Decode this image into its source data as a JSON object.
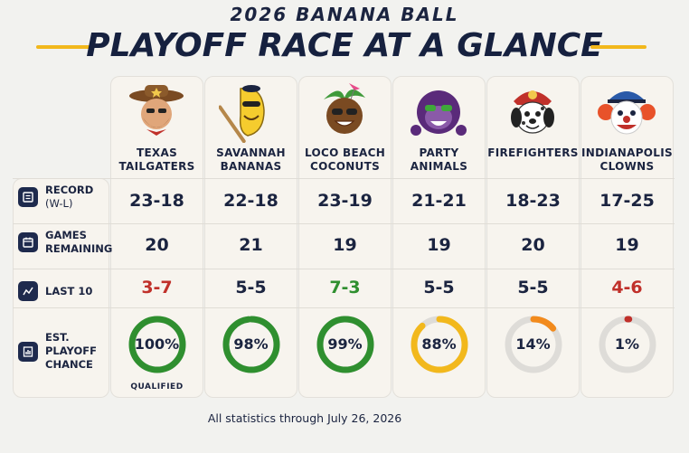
{
  "header": {
    "eyebrow": "2026 BANANA BALL",
    "title": "PLAYOFF RACE AT A GLANCE"
  },
  "row_labels": {
    "record": "RECORD",
    "record_sub": "(W-L)",
    "games": "GAMES",
    "games_sub": "REMAINING",
    "last10": "LAST 10",
    "chance": "EST. PLAYOFF",
    "chance_sub": "CHANCE"
  },
  "teams": [
    {
      "line1": "TEXAS",
      "line2": "TAILGATERS",
      "record": "23-18",
      "games_remaining": "20",
      "last10": "3-7",
      "last10_color": "#c0302a",
      "chance_label": "100%",
      "chance": 100,
      "ring_color": "#2f8f2f",
      "note": "QUALIFIED",
      "logo_icon": "cowboy-mascot-icon"
    },
    {
      "line1": "SAVANNAH",
      "line2": "BANANAS",
      "record": "22-18",
      "games_remaining": "21",
      "last10": "5-5",
      "last10_color": "#1b2440",
      "chance_label": "98%",
      "chance": 98,
      "ring_color": "#2f8f2f",
      "note": "",
      "logo_icon": "banana-mascot-icon"
    },
    {
      "line1": "LOCO BEACH",
      "line2": "COCONUTS",
      "record": "23-19",
      "games_remaining": "19",
      "last10": "7-3",
      "last10_color": "#2f8f2f",
      "chance_label": "99%",
      "chance": 99,
      "ring_color": "#2f8f2f",
      "note": "",
      "logo_icon": "coconut-mascot-icon"
    },
    {
      "line1": "PARTY",
      "line2": "ANIMALS",
      "record": "21-21",
      "games_remaining": "19",
      "last10": "5-5",
      "last10_color": "#1b2440",
      "chance_label": "88%",
      "chance": 88,
      "ring_color": "#f2b81c",
      "note": "",
      "logo_icon": "gorilla-mascot-icon"
    },
    {
      "line1": "FIREFIGHTERS",
      "line2": "",
      "record": "18-23",
      "games_remaining": "20",
      "last10": "5-5",
      "last10_color": "#1b2440",
      "chance_label": "14%",
      "chance": 14,
      "ring_color": "#f28a1c",
      "note": "",
      "logo_icon": "dalmatian-mascot-icon"
    },
    {
      "line1": "INDIANAPOLIS",
      "line2": "CLOWNS",
      "record": "17-25",
      "games_remaining": "19",
      "last10": "4-6",
      "last10_color": "#c0302a",
      "chance_label": "1%",
      "chance": 1,
      "ring_color": "#c0302a",
      "note": "",
      "logo_icon": "clown-mascot-icon"
    }
  ],
  "footer": "All statistics through July 26, 2026"
}
